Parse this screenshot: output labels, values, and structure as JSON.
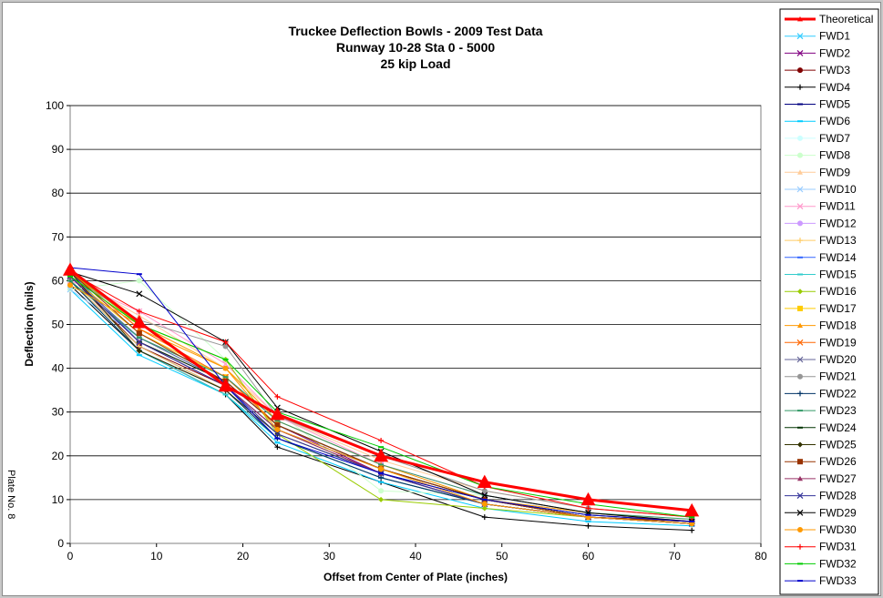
{
  "side_label": "Plate No. 8",
  "chart_data": {
    "type": "line",
    "title": [
      "Truckee Deflection Bowls - 2009 Test Data",
      "Runway 10-28 Sta 0 - 5000",
      "25 kip Load"
    ],
    "xlabel": "Offset from Center of Plate (inches)",
    "ylabel": "Deflection (mils)",
    "xlim": [
      0,
      80
    ],
    "ylim": [
      0,
      100
    ],
    "xticks": [
      0,
      10,
      20,
      30,
      40,
      50,
      60,
      70,
      80
    ],
    "yticks": [
      0,
      10,
      20,
      30,
      40,
      50,
      60,
      70,
      80,
      90,
      100
    ],
    "grid": "horizontal",
    "legend_position": "right",
    "x": [
      0,
      8,
      18,
      24,
      36,
      48,
      60,
      72
    ],
    "series": [
      {
        "name": "Theoretical",
        "color": "#ff0000",
        "marker": "triangle",
        "width": 3,
        "values": [
          62.5,
          50.5,
          36,
          29.5,
          20,
          14,
          10,
          7.5
        ]
      },
      {
        "name": "FWD1",
        "color": "#33ccff",
        "marker": "x",
        "values": [
          61,
          47,
          37,
          27,
          17,
          10,
          6,
          5
        ]
      },
      {
        "name": "FWD2",
        "color": "#800080",
        "marker": "x",
        "values": [
          62,
          46,
          37,
          27,
          16,
          9,
          6,
          4.5
        ]
      },
      {
        "name": "FWD3",
        "color": "#800000",
        "marker": "circle",
        "values": [
          61,
          45,
          36,
          26,
          16,
          9,
          6,
          4.5
        ]
      },
      {
        "name": "FWD4",
        "color": "#000000",
        "marker": "plus",
        "values": [
          59,
          44,
          34,
          22,
          14,
          6,
          4,
          3
        ]
      },
      {
        "name": "FWD5",
        "color": "#000080",
        "marker": "dash",
        "values": [
          60,
          45,
          35,
          24,
          15,
          9,
          6,
          4.5
        ]
      },
      {
        "name": "FWD6",
        "color": "#00ccff",
        "marker": "dash",
        "values": [
          58,
          43,
          34,
          23,
          14,
          8,
          5,
          4
        ]
      },
      {
        "name": "FWD7",
        "color": "#ccffff",
        "marker": "circle",
        "values": [
          59,
          50,
          40,
          28,
          18,
          11,
          7,
          5
        ]
      },
      {
        "name": "FWD8",
        "color": "#ccffcc",
        "marker": "circle",
        "values": [
          58,
          60,
          42,
          30,
          12,
          11,
          7,
          5
        ]
      },
      {
        "name": "FWD9",
        "color": "#ffcc99",
        "marker": "triangle",
        "values": [
          61,
          52,
          40,
          29,
          19,
          12,
          8,
          6
        ]
      },
      {
        "name": "FWD10",
        "color": "#99ccff",
        "marker": "x",
        "values": [
          58,
          47,
          38,
          27,
          17,
          10,
          6,
          5
        ]
      },
      {
        "name": "FWD11",
        "color": "#ff99cc",
        "marker": "x",
        "values": [
          60,
          53,
          41,
          29,
          18,
          11,
          7,
          5
        ]
      },
      {
        "name": "FWD12",
        "color": "#cc99ff",
        "marker": "circle",
        "values": [
          61,
          48,
          38,
          28,
          18,
          11,
          7,
          5
        ]
      },
      {
        "name": "FWD13",
        "color": "#ffcc66",
        "marker": "plus",
        "values": [
          60,
          45,
          35,
          24,
          15,
          9,
          6,
          4.5
        ]
      },
      {
        "name": "FWD14",
        "color": "#3366ff",
        "marker": "dash",
        "values": [
          62,
          46,
          36,
          26,
          17,
          10,
          6,
          5
        ]
      },
      {
        "name": "FWD15",
        "color": "#33cccc",
        "marker": "dash",
        "values": [
          60,
          44,
          34,
          24,
          15,
          9,
          6,
          4.5
        ]
      },
      {
        "name": "FWD16",
        "color": "#99cc00",
        "marker": "diamond",
        "values": [
          62,
          50,
          42,
          25,
          10,
          8,
          6,
          5
        ]
      },
      {
        "name": "FWD17",
        "color": "#ffcc00",
        "marker": "square",
        "values": [
          61,
          48,
          38,
          27,
          17,
          10,
          6,
          5
        ]
      },
      {
        "name": "FWD18",
        "color": "#ff9900",
        "marker": "triangle",
        "values": [
          62,
          49,
          40,
          28,
          18,
          10,
          7,
          5
        ]
      },
      {
        "name": "FWD19",
        "color": "#ff6600",
        "marker": "x",
        "values": [
          62,
          49,
          38,
          27,
          17,
          10,
          6,
          5
        ]
      },
      {
        "name": "FWD20",
        "color": "#666699",
        "marker": "x",
        "values": [
          61,
          47,
          37,
          27,
          17,
          10,
          6,
          5
        ]
      },
      {
        "name": "FWD21",
        "color": "#969696",
        "marker": "circle",
        "values": [
          61,
          51,
          45,
          29,
          20,
          12,
          8,
          6
        ]
      },
      {
        "name": "FWD22",
        "color": "#003366",
        "marker": "plus",
        "values": [
          60,
          44,
          35,
          24,
          15,
          9,
          6,
          4.5
        ]
      },
      {
        "name": "FWD23",
        "color": "#339966",
        "marker": "dash",
        "values": [
          60,
          47,
          38,
          28,
          18,
          11,
          7,
          5.5
        ]
      },
      {
        "name": "FWD24",
        "color": "#003300",
        "marker": "dash",
        "values": [
          61,
          46,
          37,
          27,
          17,
          10,
          6.5,
          5
        ]
      },
      {
        "name": "FWD25",
        "color": "#333300",
        "marker": "diamond",
        "values": [
          62,
          44,
          35,
          25,
          16,
          10,
          6,
          5
        ]
      },
      {
        "name": "FWD26",
        "color": "#993300",
        "marker": "square",
        "values": [
          62,
          48,
          37,
          27,
          17,
          10,
          6,
          5
        ]
      },
      {
        "name": "FWD27",
        "color": "#993366",
        "marker": "triangle",
        "values": [
          61,
          46,
          36,
          26,
          16,
          9,
          6,
          4.5
        ]
      },
      {
        "name": "FWD28",
        "color": "#333399",
        "marker": "x",
        "values": [
          61,
          46,
          36,
          25,
          16,
          9,
          6,
          4.5
        ]
      },
      {
        "name": "FWD29",
        "color": "#000000",
        "marker": "x",
        "values": [
          62,
          57,
          46,
          31,
          21,
          11,
          7,
          5
        ]
      },
      {
        "name": "FWD30",
        "color": "#ff9900",
        "marker": "circle",
        "values": [
          59,
          50,
          40,
          26,
          17,
          9,
          6,
          4.5
        ]
      },
      {
        "name": "FWD31",
        "color": "#ff0000",
        "marker": "plus",
        "values": [
          62,
          53,
          46,
          33.5,
          23.5,
          13,
          8,
          6
        ]
      },
      {
        "name": "FWD32",
        "color": "#00cc00",
        "marker": "dash",
        "values": [
          61,
          50,
          42,
          30,
          22,
          13,
          9,
          6
        ]
      },
      {
        "name": "FWD33",
        "color": "#0000cc",
        "marker": "dash",
        "values": [
          63,
          61.5,
          36,
          24,
          16,
          10,
          6.5,
          5
        ]
      }
    ]
  }
}
